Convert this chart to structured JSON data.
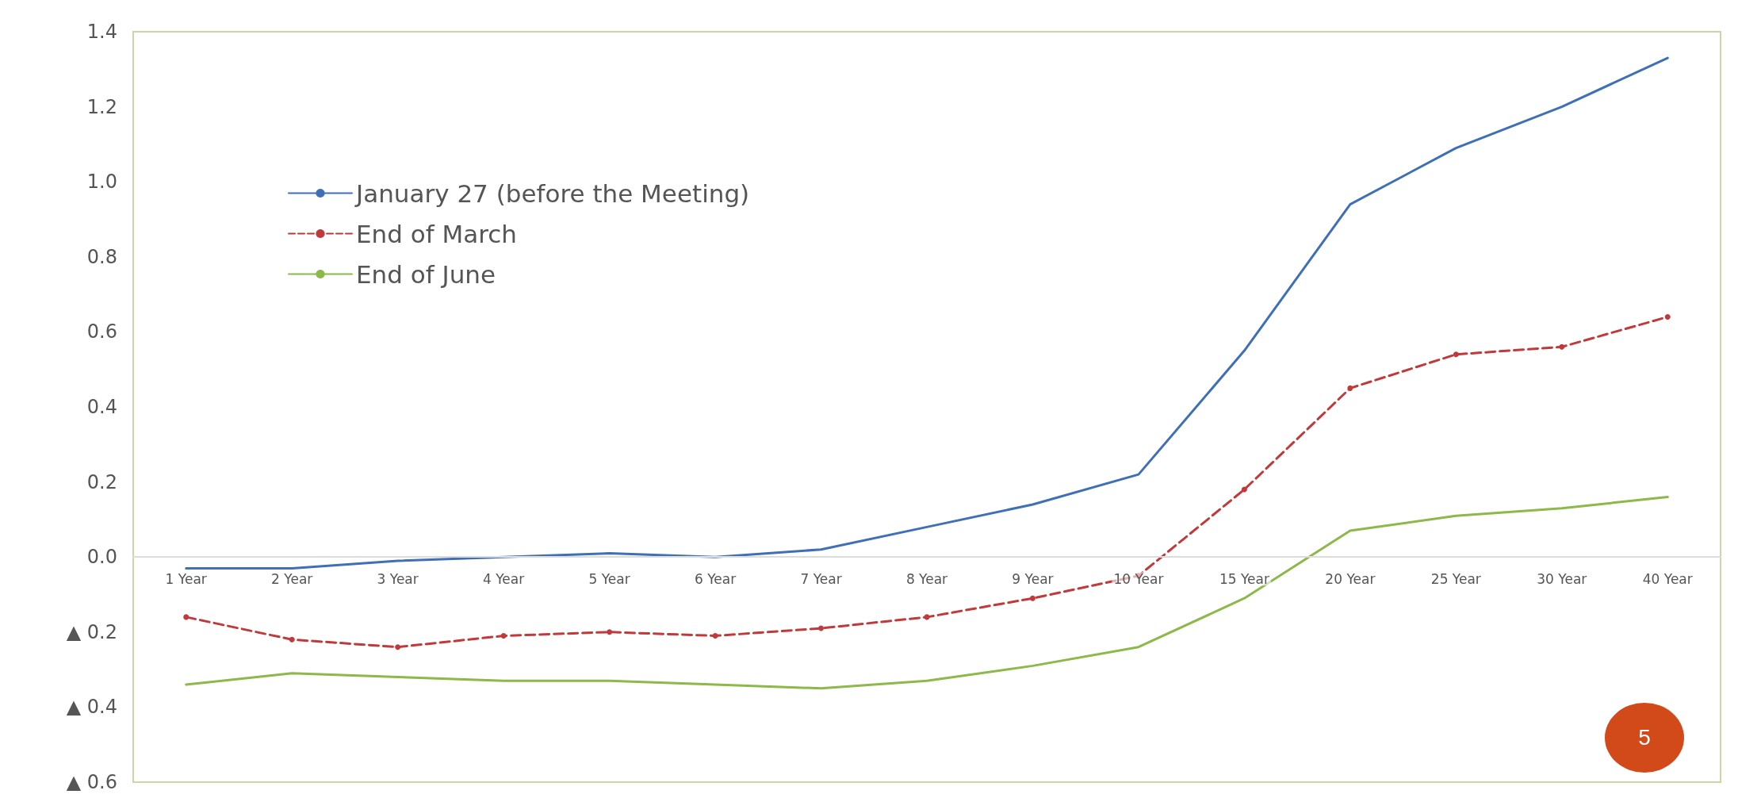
{
  "chart_data": {
    "type": "line",
    "categories": [
      "1 Year",
      "2 Year",
      "3 Year",
      "4 Year",
      "5 Year",
      "6 Year",
      "7 Year",
      "8 Year",
      "9 Year",
      "10 Year",
      "15 Year",
      "20 Year",
      "25 Year",
      "30 Year",
      "40 Year"
    ],
    "series": [
      {
        "name": "January 27 (before the Meeting)",
        "color": "#3f6fb5",
        "line_style": "solid",
        "marker": "none",
        "values": [
          -0.03,
          -0.03,
          -0.01,
          0.0,
          0.01,
          0.0,
          0.02,
          0.08,
          0.14,
          0.22,
          0.55,
          0.94,
          1.09,
          1.2,
          1.33
        ]
      },
      {
        "name": "End of March",
        "color": "#c0393b",
        "line_style": "dashed",
        "marker": "circle",
        "values": [
          -0.16,
          -0.22,
          -0.24,
          -0.21,
          -0.2,
          -0.21,
          -0.19,
          -0.16,
          -0.11,
          -0.05,
          0.18,
          0.45,
          0.54,
          0.56,
          0.64
        ]
      },
      {
        "name": "End of June",
        "color": "#8db84a",
        "line_style": "solid",
        "marker": "none",
        "values": [
          -0.34,
          -0.31,
          -0.32,
          -0.33,
          -0.33,
          -0.34,
          -0.35,
          -0.33,
          -0.29,
          -0.24,
          -0.11,
          0.07,
          0.11,
          0.13,
          0.16
        ]
      }
    ],
    "ylim": [
      -0.6,
      1.4
    ],
    "yticks": [
      {
        "value": -0.6,
        "label": "▲ 0.6"
      },
      {
        "value": -0.4,
        "label": "▲ 0.4"
      },
      {
        "value": -0.2,
        "label": "▲ 0.2"
      },
      {
        "value": 0,
        "label": "0.0"
      },
      {
        "value": 0.2,
        "label": "0.2"
      },
      {
        "value": 0.4,
        "label": "0.4"
      },
      {
        "value": 0.6,
        "label": "0.6"
      },
      {
        "value": 0.8,
        "label": "0.8"
      },
      {
        "value": 1.0,
        "label": "1.0"
      },
      {
        "value": 1.2,
        "label": "1.2"
      },
      {
        "value": 1.4,
        "label": "1.4"
      }
    ],
    "grid": false,
    "legend": "top left",
    "annotations": [
      "5"
    ]
  }
}
